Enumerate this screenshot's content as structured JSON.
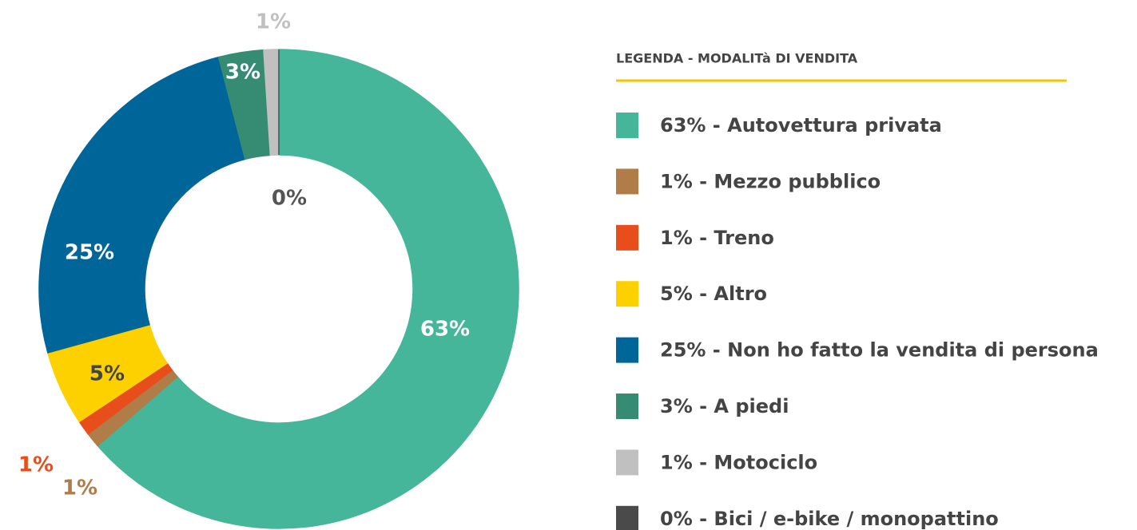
{
  "chart_data": {
    "type": "donut",
    "legend_title": "LEGENDA - MODALITà DI VENDITA",
    "categories": [
      "63% - Autovettura privata",
      "1% - Mezzo pubblico",
      "1% - Treno",
      "5% - Altro",
      "25% - Non ho fatto la vendita di persona",
      "3% - A piedi",
      "1% - Motociclo",
      "0% - Bici / e-bike / monopattino"
    ],
    "values": [
      63,
      1,
      1,
      5,
      25,
      3,
      1,
      0
    ],
    "value_labels": [
      "63%",
      "1%",
      "1%",
      "5%",
      "25%",
      "3%",
      "1%",
      "0%"
    ],
    "colors": [
      "#45b699",
      "#b07c48",
      "#e84e1b",
      "#fdd000",
      "#006699",
      "#368b73",
      "#c0c0c0",
      "#4a4a4a"
    ],
    "legend": "right"
  }
}
